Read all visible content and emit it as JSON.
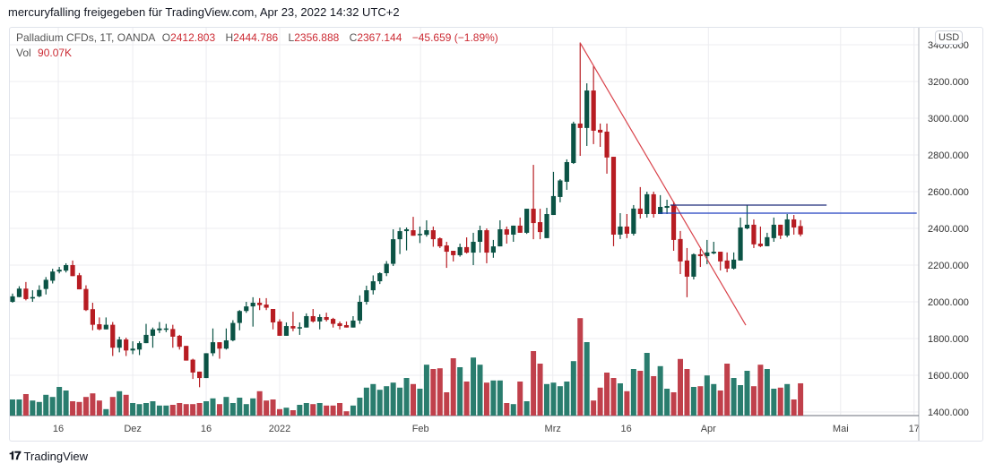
{
  "header": {
    "publisher": "mercuryfalling freigegeben für TradingView.com, Apr 23, 2022 14:32 UTC+2"
  },
  "legend": {
    "symbol": "Palladium CFDs, 1T, OANDA",
    "open_label": "O",
    "open": "2412.803",
    "high_label": "H",
    "high": "2444.786",
    "low_label": "L",
    "low": "2356.888",
    "close_label": "C",
    "close": "2367.144",
    "change": "−45.659 (−1.89%)",
    "vol_label": "Vol",
    "vol": "90.07K"
  },
  "price_axis": {
    "currency": "USD",
    "ticks": [
      "3400.000",
      "3200.000",
      "3000.000",
      "2800.000",
      "2600.000",
      "2400.000",
      "2200.000",
      "2000.000",
      "1800.000",
      "1600.000",
      "1400.000"
    ]
  },
  "time_axis": {
    "labels": [
      {
        "text": "16",
        "bar": 7.85
      },
      {
        "text": "Dez",
        "bar": 19
      },
      {
        "text": "16",
        "bar": 30
      },
      {
        "text": "2022",
        "bar": 41
      },
      {
        "text": "Feb",
        "bar": 62.1
      },
      {
        "text": "Mrz",
        "bar": 81.9
      },
      {
        "text": "16",
        "bar": 92.9
      },
      {
        "text": "Apr",
        "bar": 105.2
      },
      {
        "text": "Mai",
        "bar": 125
      },
      {
        "text": "17",
        "bar": 136
      }
    ]
  },
  "colors": {
    "up": "#0b5345",
    "down": "#b71c22",
    "vol_up": "#2a7d6e",
    "vol_down": "#c0404b",
    "trend": "#d9434b",
    "level1": "#1f2a7a",
    "level2": "#1e3fbf",
    "grid": "#ececf0"
  },
  "chart_data": {
    "type": "candlestick",
    "title": "Palladium CFDs, 1T, OANDA",
    "ylim": [
      1400,
      3450
    ],
    "ohlc": [
      [
        2000,
        2045,
        1995,
        2030
      ],
      [
        2026,
        2085,
        2025,
        2072
      ],
      [
        2072,
        2108,
        2008,
        2015
      ],
      [
        2018,
        2063,
        2000,
        2026
      ],
      [
        2030,
        2090,
        2025,
        2065
      ],
      [
        2070,
        2135,
        2040,
        2120
      ],
      [
        2115,
        2180,
        2100,
        2165
      ],
      [
        2165,
        2190,
        2155,
        2175
      ],
      [
        2170,
        2210,
        2160,
        2200
      ],
      [
        2200,
        2225,
        2140,
        2140
      ],
      [
        2145,
        2157,
        2068,
        2068
      ],
      [
        2070,
        2090,
        1950,
        1955
      ],
      [
        1960,
        1995,
        1845,
        1875
      ],
      [
        1878,
        1915,
        1845,
        1850
      ],
      [
        1850,
        1915,
        1850,
        1875
      ],
      [
        1875,
        1890,
        1705,
        1750
      ],
      [
        1750,
        1810,
        1725,
        1795
      ],
      [
        1795,
        1805,
        1705,
        1735
      ],
      [
        1735,
        1785,
        1715,
        1745
      ],
      [
        1740,
        1785,
        1710,
        1775
      ],
      [
        1775,
        1880,
        1775,
        1820
      ],
      [
        1815,
        1860,
        1750,
        1850
      ],
      [
        1845,
        1890,
        1830,
        1855
      ],
      [
        1850,
        1880,
        1835,
        1855
      ],
      [
        1852,
        1875,
        1750,
        1810
      ],
      [
        1815,
        1820,
        1740,
        1755
      ],
      [
        1760,
        1760,
        1680,
        1680
      ],
      [
        1685,
        1690,
        1580,
        1615
      ],
      [
        1620,
        1620,
        1535,
        1585
      ],
      [
        1585,
        1720,
        1585,
        1720
      ],
      [
        1720,
        1855,
        1705,
        1780
      ],
      [
        1780,
        1780,
        1690,
        1745
      ],
      [
        1745,
        1855,
        1740,
        1790
      ],
      [
        1790,
        1900,
        1785,
        1885
      ],
      [
        1885,
        1955,
        1845,
        1950
      ],
      [
        1950,
        2000,
        1940,
        1975
      ],
      [
        1975,
        2025,
        1865,
        1995
      ],
      [
        1995,
        2020,
        1955,
        1982
      ],
      [
        1985,
        2020,
        1955,
        1968
      ],
      [
        1961,
        1961,
        1850,
        1888
      ],
      [
        1893,
        1905,
        1815,
        1815
      ],
      [
        1815,
        1888,
        1815,
        1868
      ],
      [
        1868,
        1946,
        1840,
        1855
      ],
      [
        1855,
        1888,
        1820,
        1862
      ],
      [
        1860,
        1937,
        1860,
        1922
      ],
      [
        1922,
        1961,
        1887,
        1893
      ],
      [
        1893,
        1932,
        1850,
        1917
      ],
      [
        1917,
        1941,
        1893,
        1902
      ],
      [
        1907,
        1913,
        1860,
        1880
      ],
      [
        1883,
        1893,
        1850,
        1868
      ],
      [
        1873,
        1893,
        1860,
        1860
      ],
      [
        1860,
        1922,
        1860,
        1898
      ],
      [
        1898,
        2035,
        1880,
        2000
      ],
      [
        2000,
        2088,
        1985,
        2063
      ],
      [
        2063,
        2144,
        2040,
        2112
      ],
      [
        2112,
        2161,
        2097,
        2156
      ],
      [
        2156,
        2222,
        2140,
        2207
      ],
      [
        2207,
        2395,
        2195,
        2341
      ],
      [
        2341,
        2405,
        2260,
        2385
      ],
      [
        2385,
        2405,
        2280,
        2395
      ],
      [
        2390,
        2463,
        2360,
        2360
      ],
      [
        2363,
        2410,
        2320,
        2370
      ],
      [
        2365,
        2444,
        2355,
        2390
      ],
      [
        2390,
        2410,
        2300,
        2341
      ],
      [
        2346,
        2351,
        2293,
        2302
      ],
      [
        2307,
        2327,
        2185,
        2273
      ],
      [
        2278,
        2278,
        2220,
        2254
      ],
      [
        2254,
        2317,
        2246,
        2298
      ],
      [
        2298,
        2351,
        2263,
        2268
      ],
      [
        2268,
        2376,
        2200,
        2327
      ],
      [
        2327,
        2415,
        2268,
        2390
      ],
      [
        2390,
        2400,
        2210,
        2268
      ],
      [
        2268,
        2337,
        2240,
        2302
      ],
      [
        2302,
        2444,
        2302,
        2395
      ],
      [
        2395,
        2410,
        2317,
        2366
      ],
      [
        2366,
        2415,
        2327,
        2415
      ],
      [
        2415,
        2459,
        2376,
        2376
      ],
      [
        2376,
        2507,
        2370,
        2507
      ],
      [
        2507,
        2746,
        2341,
        2429
      ],
      [
        2434,
        2507,
        2341,
        2380
      ],
      [
        2347,
        2512,
        2347,
        2478
      ],
      [
        2473,
        2708,
        2473,
        2576
      ],
      [
        2571,
        2668,
        2542,
        2661
      ],
      [
        2654,
        2776,
        2610,
        2761
      ],
      [
        2756,
        2981,
        2751,
        2971
      ],
      [
        2971,
        3412,
        2795,
        2947
      ],
      [
        2947,
        3190,
        2849,
        3151
      ],
      [
        3151,
        3283,
        2859,
        2932
      ],
      [
        2937,
        2971,
        2844,
        2922
      ],
      [
        2927,
        2971,
        2698,
        2786
      ],
      [
        2790,
        2790,
        2303,
        2366
      ],
      [
        2366,
        2483,
        2342,
        2410
      ],
      [
        2410,
        2478,
        2347,
        2371
      ],
      [
        2371,
        2527,
        2361,
        2508
      ],
      [
        2508,
        2625,
        2454,
        2478
      ],
      [
        2478,
        2600,
        2459,
        2586
      ],
      [
        2586,
        2600,
        2459,
        2478
      ],
      [
        2478,
        2581,
        2478,
        2517
      ],
      [
        2512,
        2556,
        2478,
        2522
      ],
      [
        2527,
        2547,
        2278,
        2337
      ],
      [
        2342,
        2386,
        2151,
        2220
      ],
      [
        2225,
        2293,
        2025,
        2137
      ],
      [
        2137,
        2264,
        2122,
        2259
      ],
      [
        2259,
        2288,
        2190,
        2249
      ],
      [
        2249,
        2337,
        2205,
        2269
      ],
      [
        2264,
        2327,
        2259,
        2273
      ],
      [
        2273,
        2273,
        2171,
        2220
      ],
      [
        2225,
        2269,
        2161,
        2181
      ],
      [
        2181,
        2269,
        2176,
        2230
      ],
      [
        2225,
        2459,
        2225,
        2405
      ],
      [
        2400,
        2527,
        2395,
        2420
      ],
      [
        2420,
        2449,
        2293,
        2313
      ],
      [
        2317,
        2410,
        2298,
        2303
      ],
      [
        2303,
        2376,
        2303,
        2352
      ],
      [
        2347,
        2459,
        2327,
        2420
      ],
      [
        2420,
        2420,
        2342,
        2361
      ],
      [
        2361,
        2478,
        2352,
        2449
      ],
      [
        2449,
        2473,
        2366,
        2405
      ],
      [
        2412.803,
        2444.786,
        2356.888,
        2367.144
      ]
    ],
    "volume_k": [
      45,
      45,
      60,
      42,
      38,
      58,
      52,
      80,
      70,
      40,
      38,
      52,
      62,
      42,
      18,
      52,
      68,
      58,
      35,
      32,
      35,
      40,
      28,
      28,
      30,
      35,
      32,
      32,
      35,
      40,
      48,
      32,
      52,
      35,
      50,
      32,
      48,
      68,
      42,
      45,
      18,
      22,
      15,
      30,
      35,
      32,
      35,
      28,
      28,
      35,
      12,
      28,
      50,
      78,
      88,
      72,
      82,
      92,
      78,
      105,
      88,
      75,
      142,
      130,
      132,
      65,
      160,
      135,
      95,
      162,
      142,
      92,
      98,
      98,
      35,
      32,
      95,
      40,
      180,
      145,
      88,
      92,
      82,
      95,
      152,
      272,
      205,
      42,
      78,
      120,
      105,
      90,
      68,
      130,
      125,
      175,
      110,
      138,
      75,
      65,
      158,
      130,
      80,
      82,
      112,
      88,
      70,
      145,
      105,
      85,
      125,
      82,
      142,
      130,
      75,
      78,
      88,
      45,
      90.07
    ],
    "drawings": [
      {
        "type": "trendline",
        "from": {
          "bar": 86,
          "price": 3410
        },
        "to": {
          "bar": 110.8,
          "price": 1873
        },
        "color_key": "trend"
      },
      {
        "type": "horizontal",
        "price": 2527,
        "from_bar": 99.5,
        "to_bar": 122.9,
        "color_key": "level1"
      },
      {
        "type": "horizontal",
        "price": 2483,
        "from_bar": 97.8,
        "to_bar": 136.4,
        "color_key": "level2"
      }
    ]
  },
  "footer": {
    "logo_mark": "17",
    "brand": "TradingView"
  }
}
